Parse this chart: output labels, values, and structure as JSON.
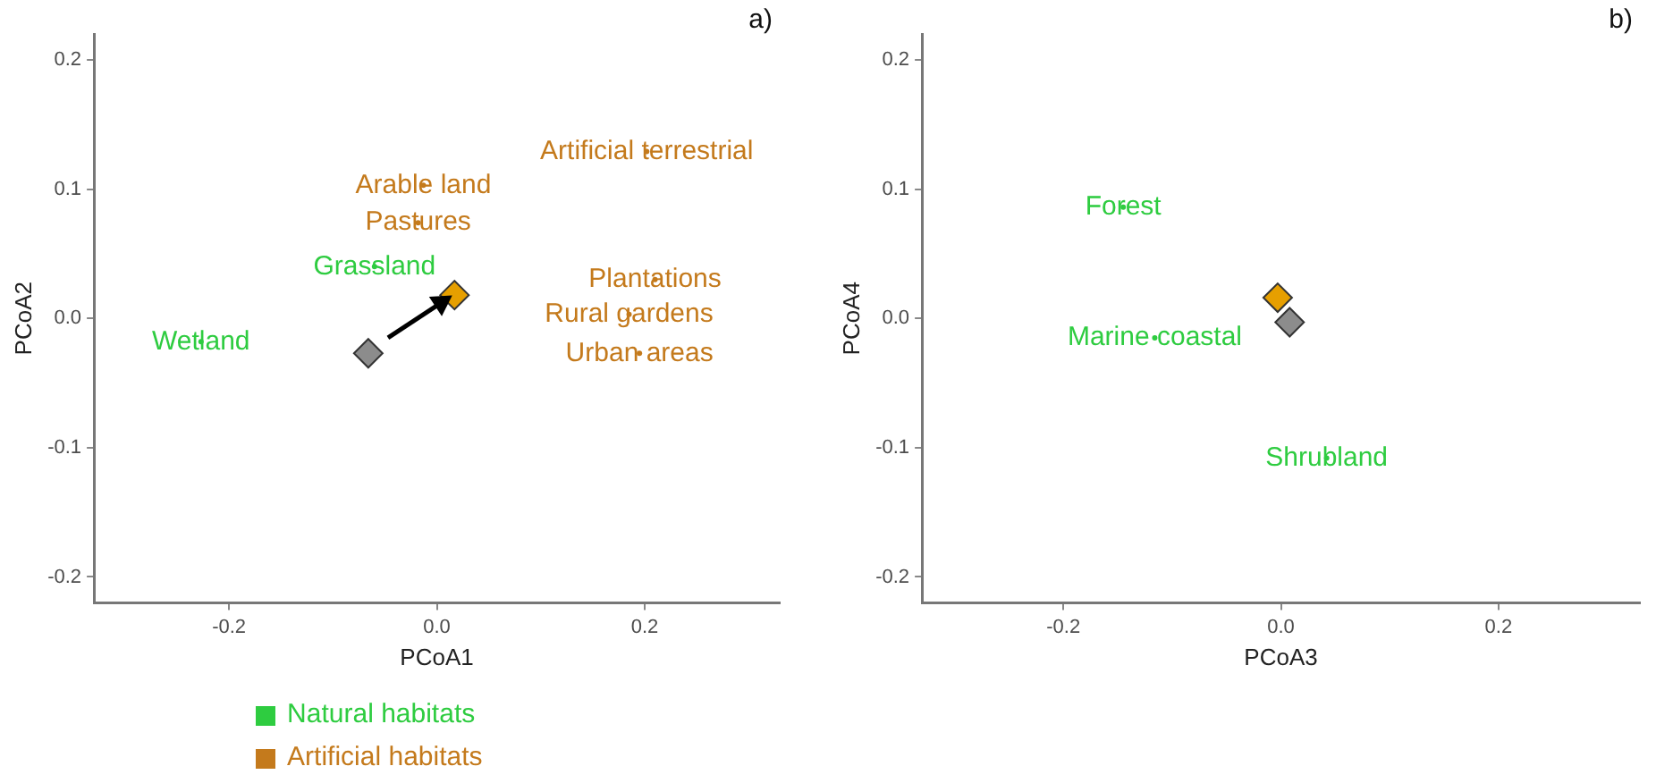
{
  "chart_data": [
    {
      "type": "scatter",
      "title": "a)",
      "xlabel": "PCoA1",
      "ylabel": "PCoA2",
      "xlim": [
        -0.33,
        0.33
      ],
      "ylim": [
        -0.22,
        0.22
      ],
      "xticks": [
        {
          "value": -0.2,
          "label": "-0.2"
        },
        {
          "value": 0,
          "label": "0.0"
        },
        {
          "value": 0.2,
          "label": "0.2"
        }
      ],
      "yticks": [
        {
          "value": -0.2,
          "label": "-0.2"
        },
        {
          "value": -0.1,
          "label": "-0.1"
        },
        {
          "value": 0,
          "label": "0.0"
        },
        {
          "value": 0.1,
          "label": "0.1"
        },
        {
          "value": 0.2,
          "label": "0.2"
        }
      ],
      "grid": false,
      "legend": "bottom left",
      "series": [
        {
          "name": "Natural habitats",
          "color": "#2ecc40",
          "x": [
            -0.227,
            -0.06
          ],
          "values": [
            -0.018,
            0.04
          ],
          "value_labels": [
            "Wetland",
            "Grassland"
          ]
        },
        {
          "name": "Artificial habitats",
          "color": "#c47a1c",
          "x": [
            -0.013,
            -0.018,
            0.202,
            0.21,
            0.185,
            0.195
          ],
          "values": [
            0.103,
            0.074,
            0.129,
            0.03,
            0.003,
            -0.027
          ],
          "value_labels": [
            "Arable land",
            "Pastures",
            "Artificial terrestrial",
            "Plantations",
            "Rural gardens",
            "Urban areas"
          ]
        },
        {
          "type": "line",
          "color": "#000000",
          "marker": "triangle",
          "x": [
            -0.047,
            0.004
          ],
          "values": [
            -0.015,
            0.012
          ]
        },
        {
          "color": "#e69f00",
          "marker": "diamond",
          "x": [
            0.017
          ],
          "values": [
            0.018
          ]
        },
        {
          "color": "#8c8c8c",
          "marker": "diamond",
          "x": [
            -0.066
          ],
          "values": [
            -0.027
          ]
        }
      ]
    },
    {
      "type": "scatter",
      "title": "b)",
      "xlabel": "PCoA3",
      "ylabel": "PCoA4",
      "xlim": [
        -0.33,
        0.33
      ],
      "ylim": [
        -0.22,
        0.22
      ],
      "xticks": [
        {
          "value": -0.2,
          "label": "-0.2"
        },
        {
          "value": 0,
          "label": "0.0"
        },
        {
          "value": 0.2,
          "label": "0.2"
        }
      ],
      "yticks": [
        {
          "value": -0.2,
          "label": "-0.2"
        },
        {
          "value": -0.1,
          "label": "-0.1"
        },
        {
          "value": 0,
          "label": "0.0"
        },
        {
          "value": 0.1,
          "label": "0.1"
        },
        {
          "value": 0.2,
          "label": "0.2"
        }
      ],
      "grid": false,
      "series": [
        {
          "color": "#2ecc40",
          "x": [
            -0.145,
            -0.116,
            0.042
          ],
          "values": [
            0.086,
            -0.015,
            -0.108
          ],
          "value_labels": [
            "Forest",
            "Marine coastal",
            "Shrubland"
          ]
        },
        {
          "color": "#e69f00",
          "marker": "diamond",
          "x": [
            -0.003
          ],
          "values": [
            0.016
          ]
        },
        {
          "color": "#8c8c8c",
          "marker": "diamond",
          "x": [
            0.008
          ],
          "values": [
            -0.003
          ]
        }
      ]
    }
  ]
}
